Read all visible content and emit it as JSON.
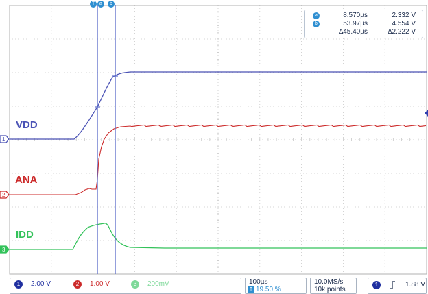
{
  "cursor_readout": {
    "a": {
      "badge": "a",
      "time": "8.570µs",
      "value": "2.332 V"
    },
    "b": {
      "badge": "b",
      "time": "53.97µs",
      "value": "4.554 V"
    },
    "delta": {
      "time": "∆45.40µs",
      "value": "∆2.222 V"
    }
  },
  "top_markers": {
    "trigger": "T",
    "a": "a",
    "b": "b"
  },
  "channels": {
    "ch1": {
      "label": "VDD",
      "number": "1",
      "scale": "2.00 V",
      "color": "#4a52b5"
    },
    "ch2": {
      "label": "ANA",
      "number": "2",
      "scale": "1.00 V",
      "color": "#cc2a2a"
    },
    "ch3": {
      "label": "IDD",
      "number": "3",
      "scale": "200mV",
      "color": "#33c25a"
    }
  },
  "timebase": {
    "scale": "100µs",
    "trigger_position": "19.50 %",
    "trigger_badge": "T"
  },
  "acquisition": {
    "sample_rate": "10.0MS/s",
    "record_length": "10k points"
  },
  "trigger": {
    "source": "1",
    "slope_icon": "rising-edge-icon",
    "level": "1.88 V"
  },
  "colors": {
    "grid": "#c8c8c8",
    "cursor": "#5b6bc9",
    "accent": "#2f8fd1"
  }
}
